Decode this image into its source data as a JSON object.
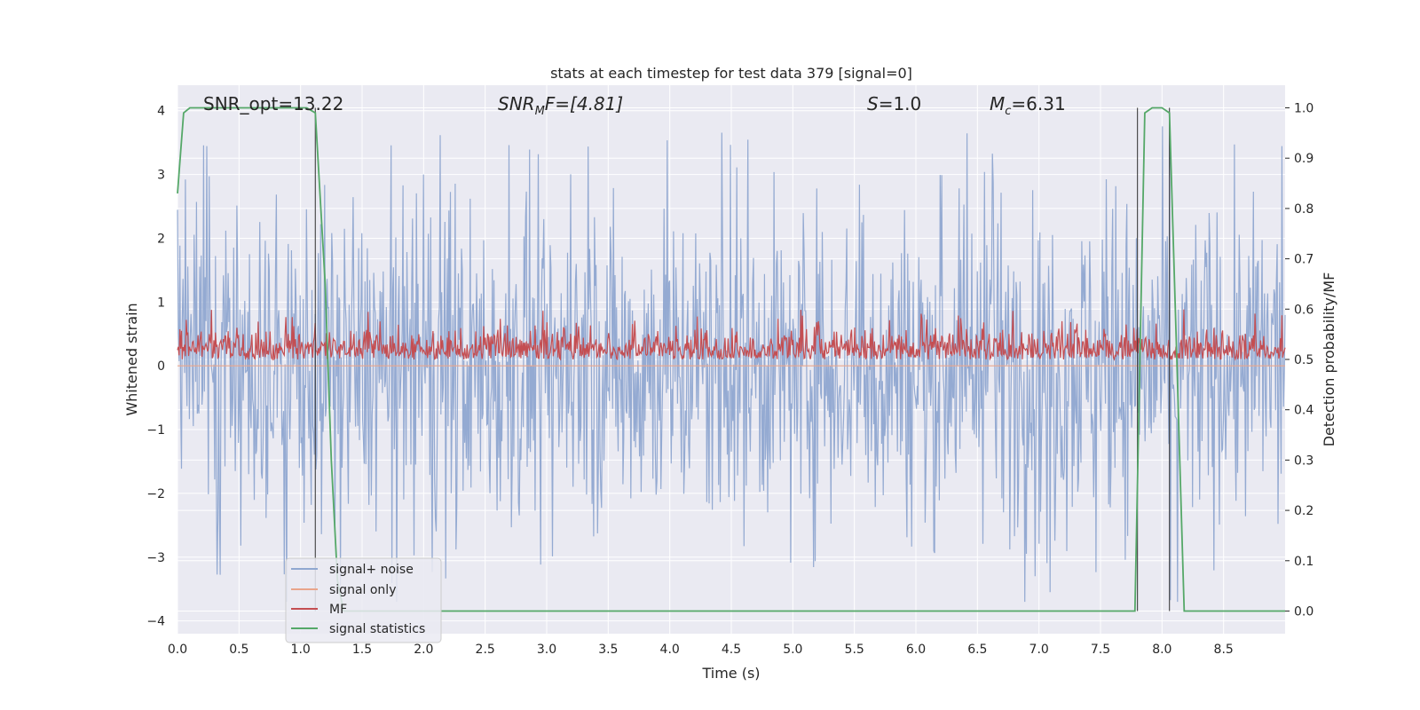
{
  "chart_data": {
    "type": "line",
    "title": "stats at each timestep for test data 379 [signal=0]",
    "xlabel": "Time (s)",
    "ylabel": "Whitened strain",
    "y2label": "Detection probability/MF",
    "xlim": [
      0,
      9.0
    ],
    "ylim": [
      -4.2,
      4.4
    ],
    "y2lim": [
      -0.045,
      1.045
    ],
    "xticks": [
      "0.0",
      "0.5",
      "1.0",
      "1.5",
      "2.0",
      "2.5",
      "3.0",
      "3.5",
      "4.0",
      "4.5",
      "5.0",
      "5.5",
      "6.0",
      "6.5",
      "7.0",
      "7.5",
      "8.0",
      "8.5"
    ],
    "yticks": [
      "4",
      "3",
      "2",
      "1",
      "0",
      "−1",
      "−2",
      "−3",
      "−4"
    ],
    "y2ticks": [
      "1.0",
      "0.9",
      "0.8",
      "0.7",
      "0.6",
      "0.5",
      "0.4",
      "0.3",
      "0.2",
      "0.1",
      "0.0"
    ],
    "grid": true,
    "legend_position": "lower-left",
    "annotations": {
      "snr_opt": "SNR_opt=13.22",
      "snr_mf_label": "SNR",
      "snr_mf_sub": "M",
      "snr_mf_rest": "F=[4.81]",
      "s_label": "S",
      "s_rest": "=1.0",
      "mc_label": "M",
      "mc_sub": "c",
      "mc_rest": "=6.31"
    },
    "series": [
      {
        "name": "signal+ noise",
        "color": "#8fa7d0",
        "axis": "left",
        "style": "dense noise",
        "envelope": {
          "upper_typical": 2.5,
          "lower_typical": -2.5,
          "max": 3.9,
          "min": -3.7
        }
      },
      {
        "name": "signal only",
        "color": "#e9a58b",
        "axis": "left",
        "values": [
          0
        ]
      },
      {
        "name": "MF",
        "color": "#c44e52",
        "axis": "right",
        "style": "dense noise",
        "envelope": {
          "base": 0.5,
          "top_typical": 0.55,
          "max": 0.6
        }
      },
      {
        "name": "signal statistics",
        "color": "#55a868",
        "axis": "right",
        "x": [
          0.0,
          0.05,
          0.1,
          0.15,
          0.2,
          0.5,
          0.8,
          1.0,
          1.05,
          1.12,
          1.2,
          1.25,
          1.3,
          1.35,
          1.5,
          3.6,
          4.6,
          5.6,
          7.78,
          7.82,
          7.86,
          7.92,
          8.0,
          8.06,
          8.12,
          8.18,
          8.3,
          9.0
        ],
        "values": [
          0.83,
          0.99,
          1.0,
          1.0,
          1.0,
          1.0,
          1.0,
          1.0,
          1.0,
          0.99,
          0.65,
          0.3,
          0.06,
          0.0,
          0.0,
          0.0,
          0.0,
          0.0,
          0.0,
          0.5,
          0.99,
          1.0,
          1.0,
          0.99,
          0.5,
          0.0,
          0.0,
          0.0
        ]
      }
    ],
    "vertical_lines": [
      1.12,
      7.8,
      8.06
    ]
  }
}
